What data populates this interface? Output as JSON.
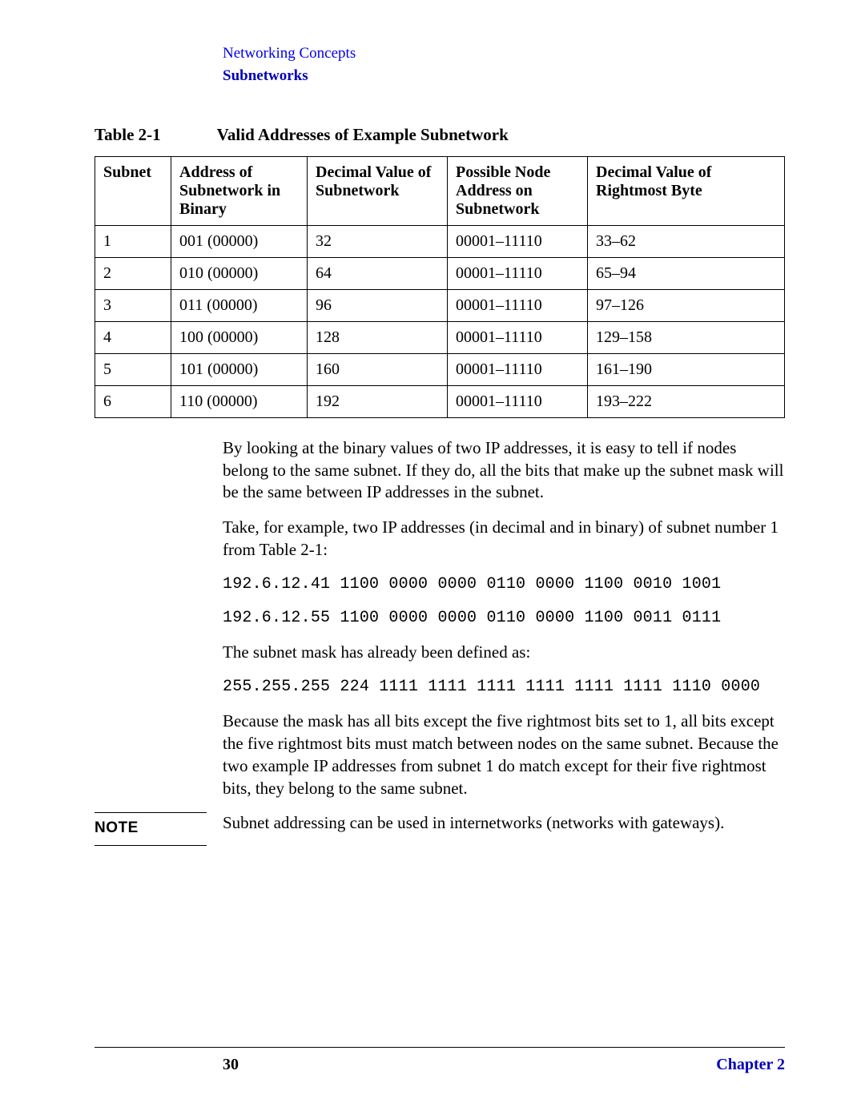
{
  "header": {
    "topic": "Networking Concepts",
    "section": "Subnetworks"
  },
  "table": {
    "label": "Table 2-1",
    "title": "Valid Addresses of Example Subnetwork",
    "columns": [
      "Subnet",
      "Address of Subnetwork in Binary",
      "Decimal Value of Subnetwork",
      "Possible Node Address on Subnetwork",
      "Decimal Value of Rightmost Byte"
    ],
    "rows": [
      [
        "1",
        "001 (00000)",
        "32",
        "00001–11110",
        "33–62"
      ],
      [
        "2",
        "010 (00000)",
        "64",
        "00001–11110",
        "65–94"
      ],
      [
        "3",
        "011 (00000)",
        "96",
        "00001–11110",
        "97–126"
      ],
      [
        "4",
        "100 (00000)",
        "128",
        "00001–11110",
        "129–158"
      ],
      [
        "5",
        "101 (00000)",
        "160",
        "00001–11110",
        "161–190"
      ],
      [
        "6",
        "110 (00000)",
        "192",
        "00001–11110",
        "193–222"
      ]
    ]
  },
  "body": {
    "p1": "By looking at the binary values of two IP addresses, it is easy to tell if nodes belong to the same subnet. If they do, all the bits that make up the subnet mask will be the same between IP addresses in the subnet.",
    "p2": "Take, for example, two IP addresses (in decimal and in binary) of subnet number 1 from Table 2-1:",
    "ip1": "192.6.12.41 1100 0000 0000 0110 0000 1100 0010 1001",
    "ip2": "192.6.12.55 1100 0000 0000 0110 0000 1100 0011 0111",
    "p3": "The subnet mask has already been defined as:",
    "mask": "255.255.255 224 1111 1111 1111 1111 1111 1111 1110 0000",
    "p4": "Because the mask has all bits except the five rightmost bits set to 1, all bits except the five rightmost bits must match between nodes on the same subnet. Because the two example IP addresses from subnet 1 do match except for their five rightmost bits, they belong to the same subnet."
  },
  "note": {
    "label": "NOTE",
    "text": "Subnet addressing can be used in internetworks (networks with gateways)."
  },
  "footer": {
    "page": "30",
    "chapter": "Chapter 2"
  },
  "colors": {
    "link_blue": "#0000ee",
    "bold_blue": "#0000bb",
    "text": "#000000",
    "bg": "#ffffff",
    "border": "#000000"
  }
}
